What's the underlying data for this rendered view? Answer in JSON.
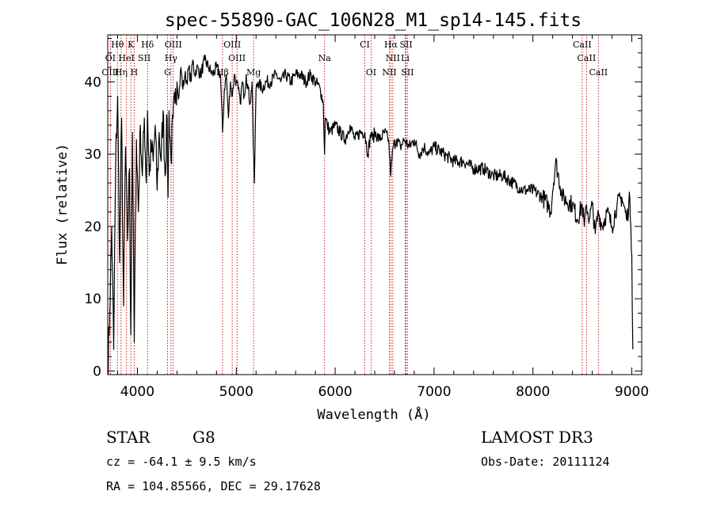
{
  "chart_data": {
    "type": "line",
    "title": "spec-55890-GAC_106N28_M1_sp14-145.fits",
    "xlabel": "Wavelength (Å)",
    "ylabel": "Flux (relative)",
    "xlim": [
      3700,
      9100
    ],
    "ylim": [
      -0.5,
      46.5
    ],
    "x_ticks": [
      4000,
      5000,
      6000,
      7000,
      8000,
      9000
    ],
    "x_tick_labels": [
      "4000",
      "5000",
      "6000",
      "7000",
      "8000",
      "9000"
    ],
    "y_ticks": [
      0,
      10,
      20,
      30,
      40
    ],
    "y_tick_labels": [
      "0",
      "10",
      "20",
      "30",
      "40"
    ],
    "grid": false,
    "series": [
      {
        "name": "flux",
        "x": [
          3700,
          3720,
          3740,
          3760,
          3780,
          3800,
          3820,
          3840,
          3860,
          3880,
          3900,
          3920,
          3933,
          3950,
          3968,
          3990,
          4010,
          4030,
          4050,
          4070,
          4090,
          4102,
          4120,
          4140,
          4160,
          4180,
          4200,
          4220,
          4240,
          4260,
          4280,
          4300,
          4310,
          4320,
          4340,
          4360,
          4380,
          4400,
          4420,
          4440,
          4460,
          4480,
          4500,
          4520,
          4540,
          4560,
          4580,
          4600,
          4640,
          4680,
          4720,
          4760,
          4800,
          4840,
          4861,
          4880,
          4900,
          4920,
          4940,
          4960,
          4980,
          5000,
          5020,
          5040,
          5060,
          5080,
          5100,
          5120,
          5140,
          5160,
          5172,
          5183,
          5200,
          5220,
          5260,
          5300,
          5350,
          5400,
          5450,
          5500,
          5550,
          5600,
          5650,
          5700,
          5750,
          5800,
          5850,
          5880,
          5893,
          5900,
          5920,
          5950,
          6000,
          6050,
          6100,
          6150,
          6200,
          6250,
          6300,
          6330,
          6363,
          6380,
          6400,
          6450,
          6500,
          6540,
          6563,
          6585,
          6620,
          6660,
          6700,
          6750,
          6800,
          6850,
          6900,
          6950,
          7000,
          7100,
          7200,
          7300,
          7400,
          7500,
          7600,
          7700,
          7800,
          7900,
          8000,
          8100,
          8150,
          8180,
          8200,
          8230,
          8300,
          8400,
          8450,
          8498,
          8520,
          8542,
          8570,
          8600,
          8630,
          8662,
          8700,
          8750,
          8800,
          8850,
          8900,
          8950,
          8980,
          8990,
          9000,
          9010
        ],
        "values": [
          0,
          8,
          20,
          3,
          29,
          38,
          15,
          35,
          9,
          31,
          18,
          28,
          5,
          33,
          4,
          32,
          22,
          34,
          27,
          35,
          26,
          36,
          27,
          31,
          29,
          34,
          25,
          33,
          29,
          36,
          27,
          35,
          24,
          36,
          29,
          35,
          37,
          40,
          38,
          42,
          39,
          41,
          40,
          42,
          40,
          43,
          41,
          42,
          41,
          43,
          42,
          41,
          42,
          41,
          33,
          39,
          41,
          35,
          40,
          38,
          41,
          40,
          39,
          37,
          40,
          38,
          41,
          39,
          37,
          40,
          31,
          26,
          39,
          40,
          39,
          40,
          40,
          41,
          40,
          41,
          40,
          41,
          41,
          40,
          41,
          40,
          39,
          37,
          30,
          35,
          34,
          33,
          34,
          33,
          32,
          34,
          32,
          33,
          33,
          30,
          33,
          32,
          33,
          32,
          33,
          32,
          27,
          31,
          32,
          31,
          32,
          31,
          32,
          30,
          31,
          30,
          31,
          30,
          29,
          29,
          28,
          28,
          27,
          27,
          26,
          25,
          25,
          24,
          23,
          22,
          25,
          29,
          24,
          23,
          21,
          23,
          20,
          23,
          21,
          23,
          19,
          22,
          20,
          22,
          20,
          23,
          24,
          21,
          24,
          20,
          16,
          3
        ]
      }
    ],
    "spectral_lines": [
      {
        "label": "Hθ",
        "wl": 3798,
        "row": 0
      },
      {
        "label": "K",
        "wl": 3934,
        "row": 0
      },
      {
        "label": "Hδ",
        "wl": 4102,
        "row": 0
      },
      {
        "label": "OIII",
        "wl": 4363,
        "row": 0
      },
      {
        "label": "OIII",
        "wl": 4959,
        "row": 0
      },
      {
        "label": "CI",
        "wl": 6300,
        "row": 0
      },
      {
        "label": "Hα",
        "wl": 6563,
        "row": 0
      },
      {
        "label": "SII",
        "wl": 6717,
        "row": 0
      },
      {
        "label": "CaII",
        "wl": 8498,
        "row": 0
      },
      {
        "label": "OI",
        "wl": 3727,
        "row": 1
      },
      {
        "label": "HeI",
        "wl": 3889,
        "row": 1
      },
      {
        "label": "SII",
        "wl": 4069,
        "row": 1
      },
      {
        "label": "Hγ",
        "wl": 4340,
        "row": 1
      },
      {
        "label": "OIII",
        "wl": 5007,
        "row": 1
      },
      {
        "label": "Na",
        "wl": 5893,
        "row": 1
      },
      {
        "label": "NII",
        "wl": 6583,
        "row": 1
      },
      {
        "label": "Li",
        "wl": 6708,
        "row": 1
      },
      {
        "label": "CaII",
        "wl": 8542,
        "row": 1
      },
      {
        "label": "OIII",
        "wl": 3727,
        "row": 2
      },
      {
        "label": "Hη",
        "wl": 3835,
        "row": 2
      },
      {
        "label": "H",
        "wl": 3968,
        "row": 2
      },
      {
        "label": "G",
        "wl": 4305,
        "row": 2
      },
      {
        "label": "Hβ",
        "wl": 4861,
        "row": 2
      },
      {
        "label": "Mg",
        "wl": 5175,
        "row": 2
      },
      {
        "label": "OI",
        "wl": 6363,
        "row": 2
      },
      {
        "label": "NII",
        "wl": 6548,
        "row": 2
      },
      {
        "label": "SII",
        "wl": 6731,
        "row": 2
      },
      {
        "label": "CaII",
        "wl": 8662,
        "row": 2
      }
    ],
    "line_markers_wl": [
      3727,
      3798,
      3835,
      3889,
      3934,
      3968,
      4102,
      4305,
      4340,
      4363,
      4861,
      4959,
      5007,
      5175,
      5893,
      6300,
      6363,
      6548,
      6563,
      6583,
      6708,
      6717,
      6731,
      8498,
      8542,
      8662
    ],
    "colors": {
      "flux": "#000000",
      "line_marker": "#cc0000",
      "axes": "#000000"
    }
  },
  "info": {
    "class_label": "STAR",
    "subclass": "G8",
    "survey": "LAMOST DR3",
    "redshift": "cz = -64.1 ± 9.5 km/s",
    "obs_date": "Obs-Date: 20111124",
    "coords": "RA = 104.85566, DEC =  29.17628"
  }
}
